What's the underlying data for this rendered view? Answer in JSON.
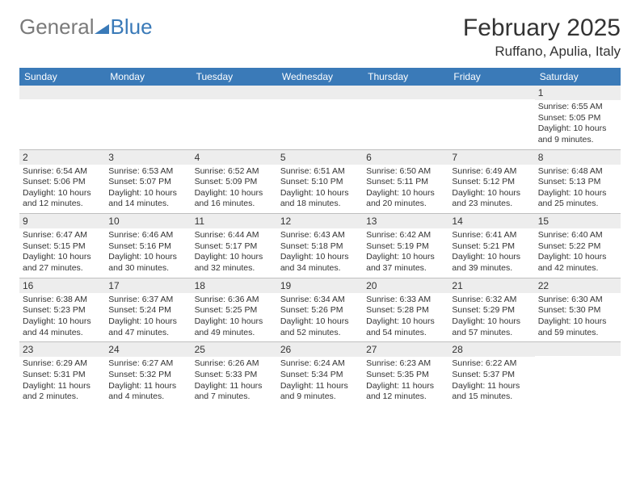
{
  "logo": {
    "word1": "General",
    "word2": "Blue"
  },
  "title": "February 2025",
  "location": "Ruffano, Apulia, Italy",
  "colors": {
    "header_bg": "#3a7ab8",
    "header_text": "#ffffff",
    "band_bg": "#ededed",
    "rule": "#bfbfbf",
    "text": "#333333",
    "logo_gray": "#7a7a7a",
    "logo_blue": "#3a7ab8"
  },
  "dayHeaders": [
    "Sunday",
    "Monday",
    "Tuesday",
    "Wednesday",
    "Thursday",
    "Friday",
    "Saturday"
  ],
  "weeks": [
    [
      {
        "n": "",
        "lines": []
      },
      {
        "n": "",
        "lines": []
      },
      {
        "n": "",
        "lines": []
      },
      {
        "n": "",
        "lines": []
      },
      {
        "n": "",
        "lines": []
      },
      {
        "n": "",
        "lines": []
      },
      {
        "n": "1",
        "lines": [
          "Sunrise: 6:55 AM",
          "Sunset: 5:05 PM",
          "Daylight: 10 hours and 9 minutes."
        ]
      }
    ],
    [
      {
        "n": "2",
        "lines": [
          "Sunrise: 6:54 AM",
          "Sunset: 5:06 PM",
          "Daylight: 10 hours and 12 minutes."
        ]
      },
      {
        "n": "3",
        "lines": [
          "Sunrise: 6:53 AM",
          "Sunset: 5:07 PM",
          "Daylight: 10 hours and 14 minutes."
        ]
      },
      {
        "n": "4",
        "lines": [
          "Sunrise: 6:52 AM",
          "Sunset: 5:09 PM",
          "Daylight: 10 hours and 16 minutes."
        ]
      },
      {
        "n": "5",
        "lines": [
          "Sunrise: 6:51 AM",
          "Sunset: 5:10 PM",
          "Daylight: 10 hours and 18 minutes."
        ]
      },
      {
        "n": "6",
        "lines": [
          "Sunrise: 6:50 AM",
          "Sunset: 5:11 PM",
          "Daylight: 10 hours and 20 minutes."
        ]
      },
      {
        "n": "7",
        "lines": [
          "Sunrise: 6:49 AM",
          "Sunset: 5:12 PM",
          "Daylight: 10 hours and 23 minutes."
        ]
      },
      {
        "n": "8",
        "lines": [
          "Sunrise: 6:48 AM",
          "Sunset: 5:13 PM",
          "Daylight: 10 hours and 25 minutes."
        ]
      }
    ],
    [
      {
        "n": "9",
        "lines": [
          "Sunrise: 6:47 AM",
          "Sunset: 5:15 PM",
          "Daylight: 10 hours and 27 minutes."
        ]
      },
      {
        "n": "10",
        "lines": [
          "Sunrise: 6:46 AM",
          "Sunset: 5:16 PM",
          "Daylight: 10 hours and 30 minutes."
        ]
      },
      {
        "n": "11",
        "lines": [
          "Sunrise: 6:44 AM",
          "Sunset: 5:17 PM",
          "Daylight: 10 hours and 32 minutes."
        ]
      },
      {
        "n": "12",
        "lines": [
          "Sunrise: 6:43 AM",
          "Sunset: 5:18 PM",
          "Daylight: 10 hours and 34 minutes."
        ]
      },
      {
        "n": "13",
        "lines": [
          "Sunrise: 6:42 AM",
          "Sunset: 5:19 PM",
          "Daylight: 10 hours and 37 minutes."
        ]
      },
      {
        "n": "14",
        "lines": [
          "Sunrise: 6:41 AM",
          "Sunset: 5:21 PM",
          "Daylight: 10 hours and 39 minutes."
        ]
      },
      {
        "n": "15",
        "lines": [
          "Sunrise: 6:40 AM",
          "Sunset: 5:22 PM",
          "Daylight: 10 hours and 42 minutes."
        ]
      }
    ],
    [
      {
        "n": "16",
        "lines": [
          "Sunrise: 6:38 AM",
          "Sunset: 5:23 PM",
          "Daylight: 10 hours and 44 minutes."
        ]
      },
      {
        "n": "17",
        "lines": [
          "Sunrise: 6:37 AM",
          "Sunset: 5:24 PM",
          "Daylight: 10 hours and 47 minutes."
        ]
      },
      {
        "n": "18",
        "lines": [
          "Sunrise: 6:36 AM",
          "Sunset: 5:25 PM",
          "Daylight: 10 hours and 49 minutes."
        ]
      },
      {
        "n": "19",
        "lines": [
          "Sunrise: 6:34 AM",
          "Sunset: 5:26 PM",
          "Daylight: 10 hours and 52 minutes."
        ]
      },
      {
        "n": "20",
        "lines": [
          "Sunrise: 6:33 AM",
          "Sunset: 5:28 PM",
          "Daylight: 10 hours and 54 minutes."
        ]
      },
      {
        "n": "21",
        "lines": [
          "Sunrise: 6:32 AM",
          "Sunset: 5:29 PM",
          "Daylight: 10 hours and 57 minutes."
        ]
      },
      {
        "n": "22",
        "lines": [
          "Sunrise: 6:30 AM",
          "Sunset: 5:30 PM",
          "Daylight: 10 hours and 59 minutes."
        ]
      }
    ],
    [
      {
        "n": "23",
        "lines": [
          "Sunrise: 6:29 AM",
          "Sunset: 5:31 PM",
          "Daylight: 11 hours and 2 minutes."
        ]
      },
      {
        "n": "24",
        "lines": [
          "Sunrise: 6:27 AM",
          "Sunset: 5:32 PM",
          "Daylight: 11 hours and 4 minutes."
        ]
      },
      {
        "n": "25",
        "lines": [
          "Sunrise: 6:26 AM",
          "Sunset: 5:33 PM",
          "Daylight: 11 hours and 7 minutes."
        ]
      },
      {
        "n": "26",
        "lines": [
          "Sunrise: 6:24 AM",
          "Sunset: 5:34 PM",
          "Daylight: 11 hours and 9 minutes."
        ]
      },
      {
        "n": "27",
        "lines": [
          "Sunrise: 6:23 AM",
          "Sunset: 5:35 PM",
          "Daylight: 11 hours and 12 minutes."
        ]
      },
      {
        "n": "28",
        "lines": [
          "Sunrise: 6:22 AM",
          "Sunset: 5:37 PM",
          "Daylight: 11 hours and 15 minutes."
        ]
      },
      {
        "n": "",
        "lines": []
      }
    ]
  ]
}
